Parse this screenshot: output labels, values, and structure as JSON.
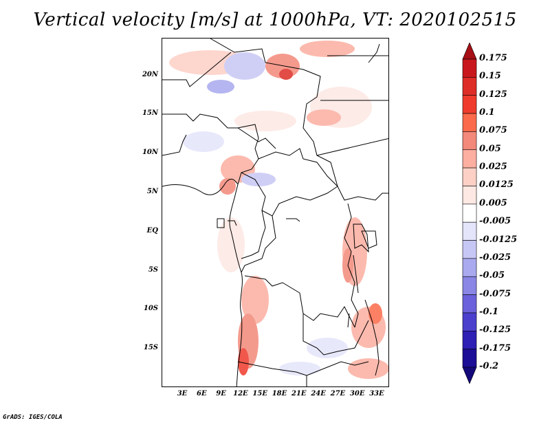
{
  "title": "Vertical velocity [m/s] at 1000hPa, VT: 2020102515",
  "lat_ticks": [
    "20N",
    "15N",
    "10N",
    "5N",
    "EQ",
    "5S",
    "10S",
    "15S"
  ],
  "lon_ticks": [
    "3E",
    "6E",
    "9E",
    "12E",
    "15E",
    "18E",
    "21E",
    "24E",
    "27E",
    "30E",
    "33E"
  ],
  "colorbar": {
    "labels": [
      "0.175",
      "0.15",
      "0.125",
      "0.1",
      "0.075",
      "0.05",
      "0.025",
      "0.0125",
      "0.005",
      "-0.005",
      "-0.0125",
      "-0.025",
      "-0.05",
      "-0.075",
      "-0.1",
      "-0.125",
      "-0.175",
      "-0.2"
    ],
    "colors": [
      "#a50f15",
      "#c9181d",
      "#de2d26",
      "#ef3b2c",
      "#fb6a4a",
      "#f3897a",
      "#fcaea0",
      "#fdd0c6",
      "#fde8e3",
      "#ffffff",
      "#e4e4fb",
      "#c7c7f5",
      "#a9a9ef",
      "#8a86e6",
      "#6b61dc",
      "#4b3fce",
      "#2e1fb5",
      "#1c0e96",
      "#13077a"
    ]
  },
  "credit": "GrADS: IGES/COLA"
}
